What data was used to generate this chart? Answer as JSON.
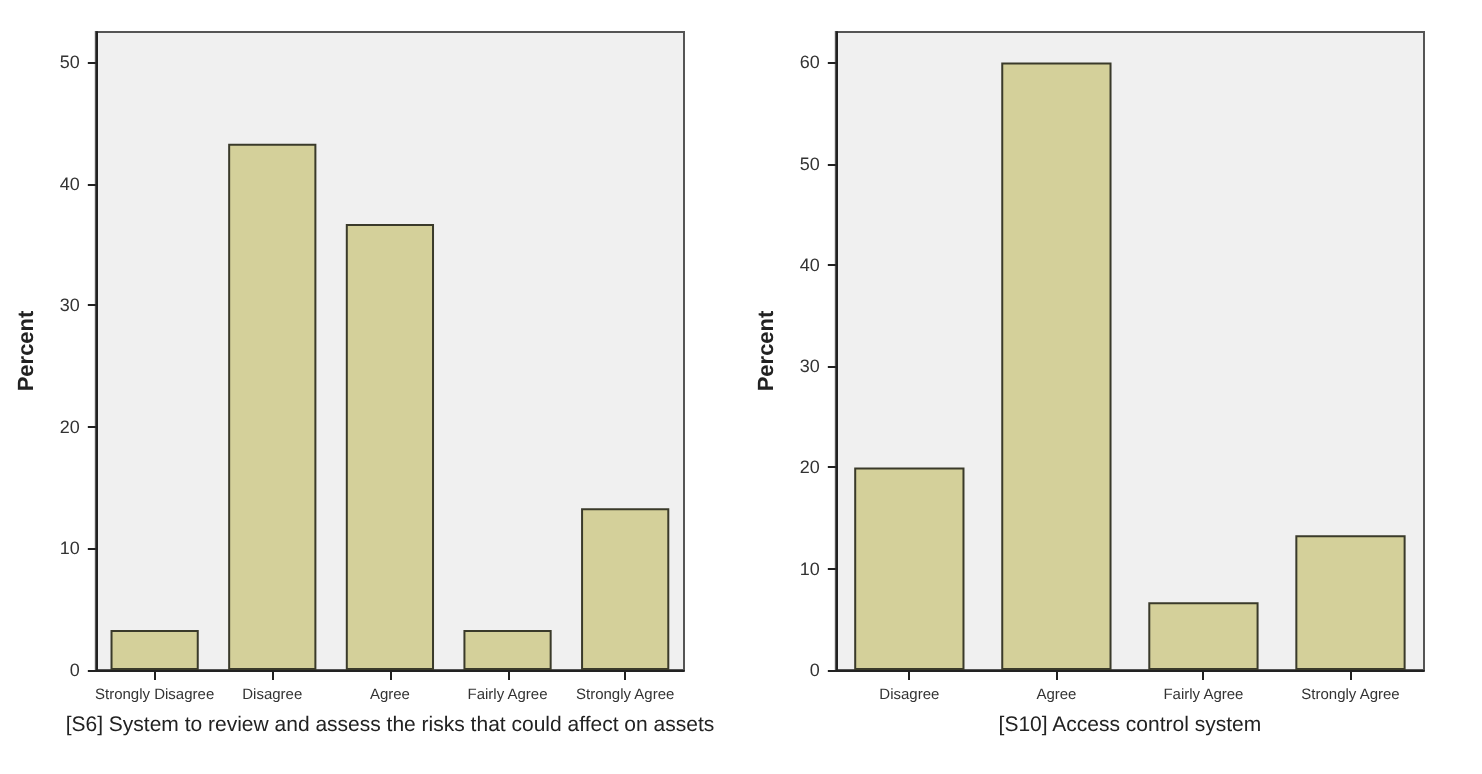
{
  "chart_data": [
    {
      "type": "bar",
      "xlabel": "[S6] System to review and assess the risks that could affect on assets",
      "ylabel": "Percent",
      "categories": [
        "Strongly Disagree",
        "Disagree",
        "Agree",
        "Fairly Agree",
        "Strongly Agree"
      ],
      "values": [
        3.3,
        43.3,
        36.7,
        3.3,
        13.3
      ],
      "color": "#d4d09a",
      "ylim": [
        0,
        52.5
      ],
      "yticks": [
        0,
        10,
        20,
        30,
        40,
        50
      ],
      "grid": false
    },
    {
      "type": "bar",
      "xlabel": "[S10] Access control system",
      "ylabel": "Percent",
      "categories": [
        "Disagree",
        "Agree",
        "Fairly Agree",
        "Strongly Agree"
      ],
      "values": [
        20,
        60,
        6.7,
        13.3
      ],
      "color": "#d4d09a",
      "ylim": [
        0,
        63
      ],
      "yticks": [
        0,
        10,
        20,
        30,
        40,
        50,
        60
      ],
      "grid": false
    }
  ]
}
